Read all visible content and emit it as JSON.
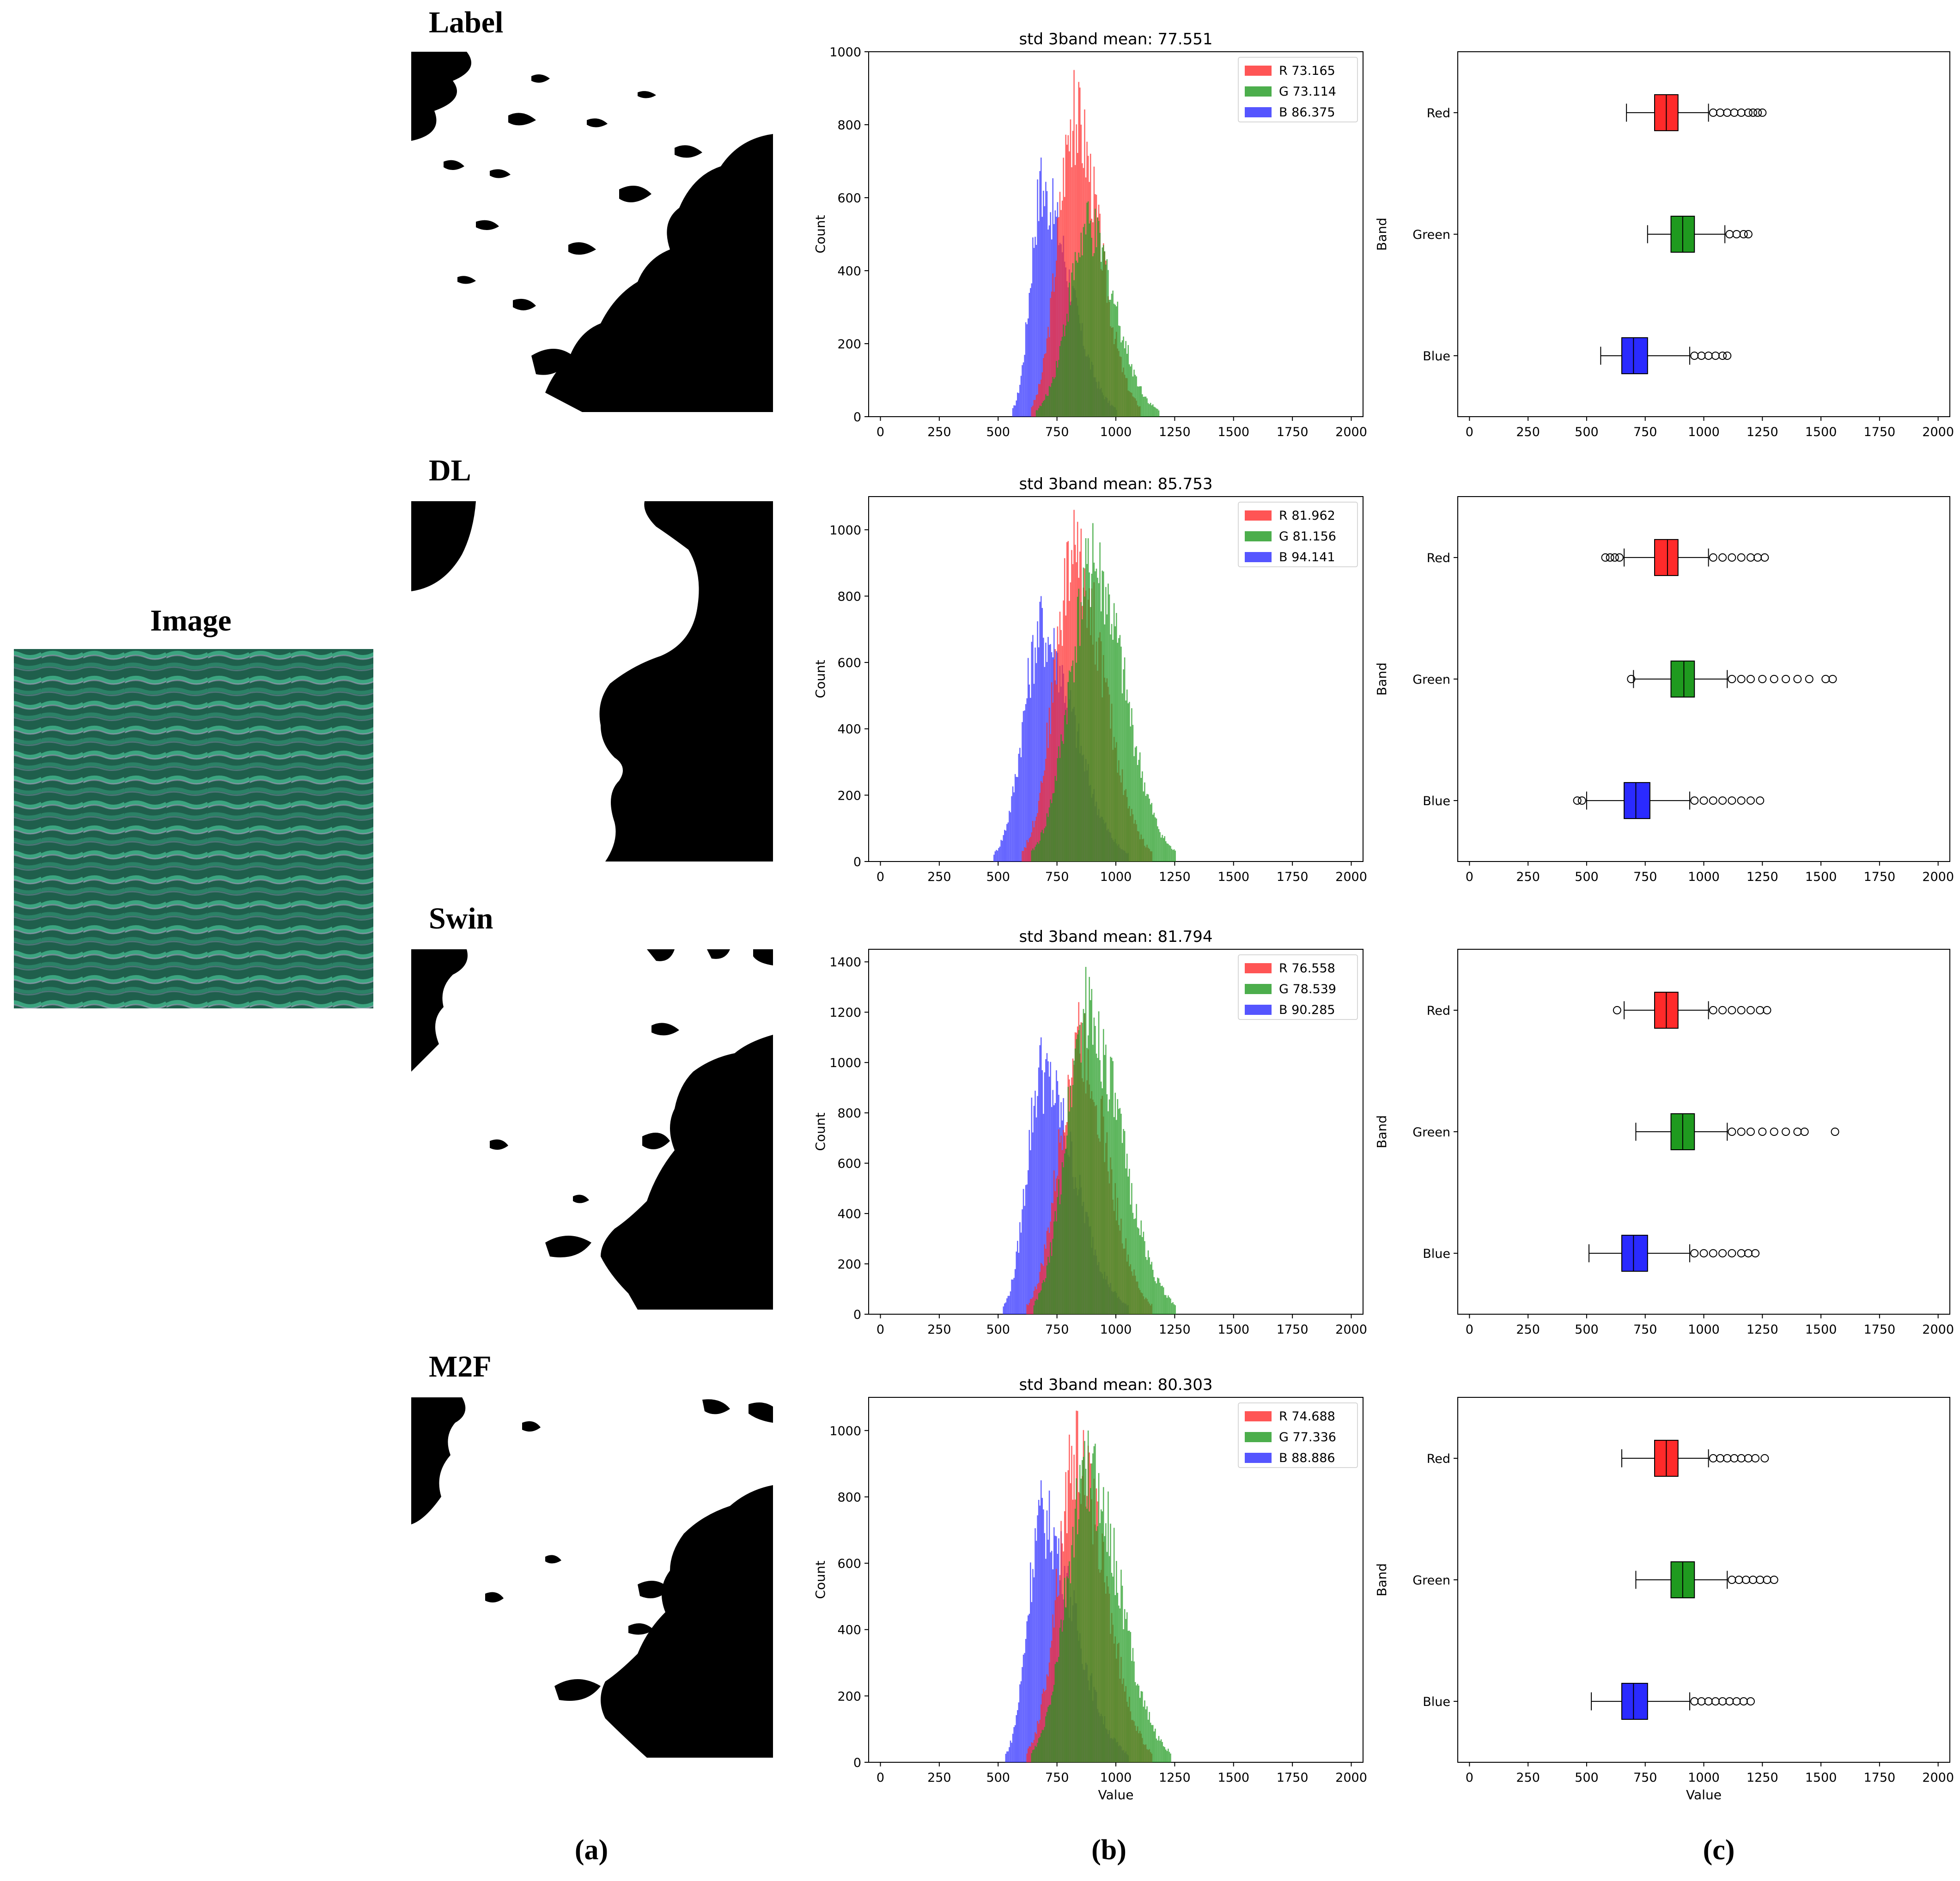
{
  "image_label": "Image",
  "panel_labels": [
    "(a)",
    "(b)",
    "(c)"
  ],
  "rows": [
    "Label",
    "DL",
    "Swin",
    "M2F"
  ],
  "colors": {
    "red": "#ff2a2a",
    "green": "#1f9a1f",
    "blue": "#2a2aff",
    "dark_red": "#b01818",
    "dark_green": "#0d5a0d",
    "dark_blue": "#1c1cb0"
  },
  "chart_data": [
    {
      "type": "histogram",
      "row": "Label",
      "title": "std 3band mean: 77.551",
      "ylabel": "Count",
      "xlabel": "",
      "xlim": [
        -50,
        2050
      ],
      "ylim": [
        0,
        1000
      ],
      "xticks": [
        0,
        250,
        500,
        750,
        1000,
        1250,
        1500,
        1750,
        2000
      ],
      "yticks": [
        0,
        200,
        400,
        600,
        800,
        1000
      ],
      "legend_position": "top-right",
      "series": [
        {
          "name": "R 73.165",
          "band": "red",
          "peak_x": 820,
          "peak_y": 950,
          "min_x": 640,
          "max_x": 1100
        },
        {
          "name": "G 73.114",
          "band": "green",
          "peak_x": 880,
          "peak_y": 590,
          "min_x": 660,
          "max_x": 1180
        },
        {
          "name": "B 86.375",
          "band": "blue",
          "peak_x": 680,
          "peak_y": 710,
          "min_x": 560,
          "max_x": 1000
        }
      ]
    },
    {
      "type": "histogram",
      "row": "DL",
      "title": "std 3band mean: 85.753",
      "ylabel": "Count",
      "xlabel": "",
      "xlim": [
        -50,
        2050
      ],
      "ylim": [
        0,
        1100
      ],
      "xticks": [
        0,
        250,
        500,
        750,
        1000,
        1250,
        1500,
        1750,
        2000
      ],
      "yticks": [
        0,
        200,
        400,
        600,
        800,
        1000
      ],
      "legend_position": "top-right",
      "series": [
        {
          "name": "R 81.962",
          "band": "red",
          "peak_x": 820,
          "peak_y": 1060,
          "min_x": 600,
          "max_x": 1150
        },
        {
          "name": "G 81.156",
          "band": "green",
          "peak_x": 900,
          "peak_y": 1020,
          "min_x": 640,
          "max_x": 1250
        },
        {
          "name": "B 94.141",
          "band": "blue",
          "peak_x": 680,
          "peak_y": 800,
          "min_x": 480,
          "max_x": 1050
        }
      ]
    },
    {
      "type": "histogram",
      "row": "Swin",
      "title": "std 3band mean: 81.794",
      "ylabel": "Count",
      "xlabel": "",
      "xlim": [
        -50,
        2050
      ],
      "ylim": [
        0,
        1450
      ],
      "xticks": [
        0,
        250,
        500,
        750,
        1000,
        1250,
        1500,
        1750,
        2000
      ],
      "yticks": [
        0,
        200,
        400,
        600,
        800,
        1000,
        1200,
        1400
      ],
      "legend_position": "top-right",
      "series": [
        {
          "name": "R 76.558",
          "band": "red",
          "peak_x": 840,
          "peak_y": 1240,
          "min_x": 620,
          "max_x": 1150
        },
        {
          "name": "G 78.539",
          "band": "green",
          "peak_x": 870,
          "peak_y": 1380,
          "min_x": 650,
          "max_x": 1250
        },
        {
          "name": "B 90.285",
          "band": "blue",
          "peak_x": 680,
          "peak_y": 1100,
          "min_x": 520,
          "max_x": 1050
        }
      ]
    },
    {
      "type": "histogram",
      "row": "M2F",
      "title": "std 3band mean: 80.303",
      "ylabel": "Count",
      "xlabel": "Value",
      "xlim": [
        -50,
        2050
      ],
      "ylim": [
        0,
        1100
      ],
      "xticks": [
        0,
        250,
        500,
        750,
        1000,
        1250,
        1500,
        1750,
        2000
      ],
      "yticks": [
        0,
        200,
        400,
        600,
        800,
        1000
      ],
      "legend_position": "top-right",
      "series": [
        {
          "name": "R 74.688",
          "band": "red",
          "peak_x": 830,
          "peak_y": 1060,
          "min_x": 620,
          "max_x": 1150
        },
        {
          "name": "G 77.336",
          "band": "green",
          "peak_x": 880,
          "peak_y": 1000,
          "min_x": 640,
          "max_x": 1230
        },
        {
          "name": "B 88.886",
          "band": "blue",
          "peak_x": 680,
          "peak_y": 850,
          "min_x": 530,
          "max_x": 1050
        }
      ]
    },
    {
      "type": "boxplot",
      "row": "Label",
      "orientation": "horizontal",
      "ylabel": "Band",
      "xlabel": "",
      "xlim": [
        -50,
        2050
      ],
      "xticks": [
        0,
        250,
        500,
        750,
        1000,
        1250,
        1500,
        1750,
        2000
      ],
      "categories": [
        "Red",
        "Green",
        "Blue"
      ],
      "boxes": [
        {
          "band": "red",
          "whisker_low": 670,
          "q1": 790,
          "median": 840,
          "q3": 890,
          "whisker_high": 1020,
          "outliers": [
            1040,
            1070,
            1100,
            1130,
            1160,
            1190,
            1210,
            1230,
            1250
          ]
        },
        {
          "band": "green",
          "whisker_low": 760,
          "q1": 860,
          "median": 910,
          "q3": 960,
          "whisker_high": 1090,
          "outliers": [
            1110,
            1140,
            1170,
            1190
          ]
        },
        {
          "band": "blue",
          "whisker_low": 560,
          "q1": 650,
          "median": 700,
          "q3": 760,
          "whisker_high": 940,
          "outliers": [
            960,
            990,
            1020,
            1050,
            1080,
            1100
          ]
        }
      ]
    },
    {
      "type": "boxplot",
      "row": "DL",
      "orientation": "horizontal",
      "ylabel": "Band",
      "xlabel": "",
      "xlim": [
        -50,
        2050
      ],
      "xticks": [
        0,
        250,
        500,
        750,
        1000,
        1250,
        1500,
        1750,
        2000
      ],
      "categories": [
        "Red",
        "Green",
        "Blue"
      ],
      "boxes": [
        {
          "band": "red",
          "whisker_low": 660,
          "q1": 790,
          "median": 845,
          "q3": 890,
          "whisker_high": 1020,
          "outliers": [
            580,
            600,
            620,
            640,
            1040,
            1080,
            1120,
            1160,
            1200,
            1230,
            1260
          ]
        },
        {
          "band": "green",
          "whisker_low": 700,
          "q1": 860,
          "median": 915,
          "q3": 960,
          "whisker_high": 1100,
          "outliers": [
            690,
            1120,
            1160,
            1200,
            1250,
            1300,
            1350,
            1400,
            1450,
            1520,
            1550
          ]
        },
        {
          "band": "blue",
          "whisker_low": 500,
          "q1": 660,
          "median": 710,
          "q3": 770,
          "whisker_high": 940,
          "outliers": [
            460,
            480,
            960,
            1000,
            1040,
            1080,
            1120,
            1160,
            1200,
            1240
          ]
        }
      ]
    },
    {
      "type": "boxplot",
      "row": "Swin",
      "orientation": "horizontal",
      "ylabel": "Band",
      "xlabel": "",
      "xlim": [
        -50,
        2050
      ],
      "xticks": [
        0,
        250,
        500,
        750,
        1000,
        1250,
        1500,
        1750,
        2000
      ],
      "categories": [
        "Red",
        "Green",
        "Blue"
      ],
      "boxes": [
        {
          "band": "red",
          "whisker_low": 660,
          "q1": 790,
          "median": 840,
          "q3": 890,
          "whisker_high": 1020,
          "outliers": [
            630,
            1040,
            1080,
            1120,
            1160,
            1200,
            1240,
            1270
          ]
        },
        {
          "band": "green",
          "whisker_low": 710,
          "q1": 860,
          "median": 910,
          "q3": 960,
          "whisker_high": 1100,
          "outliers": [
            1120,
            1160,
            1200,
            1250,
            1300,
            1350,
            1400,
            1430,
            1560
          ]
        },
        {
          "band": "blue",
          "whisker_low": 510,
          "q1": 650,
          "median": 700,
          "q3": 760,
          "whisker_high": 940,
          "outliers": [
            960,
            1000,
            1040,
            1080,
            1120,
            1160,
            1190,
            1220
          ]
        }
      ]
    },
    {
      "type": "boxplot",
      "row": "M2F",
      "orientation": "horizontal",
      "ylabel": "Band",
      "xlabel": "Value",
      "xlim": [
        -50,
        2050
      ],
      "xticks": [
        0,
        250,
        500,
        750,
        1000,
        1250,
        1500,
        1750,
        2000
      ],
      "categories": [
        "Red",
        "Green",
        "Blue"
      ],
      "boxes": [
        {
          "band": "red",
          "whisker_low": 650,
          "q1": 790,
          "median": 840,
          "q3": 890,
          "whisker_high": 1020,
          "outliers": [
            1040,
            1070,
            1100,
            1130,
            1160,
            1190,
            1220,
            1260
          ]
        },
        {
          "band": "green",
          "whisker_low": 710,
          "q1": 860,
          "median": 910,
          "q3": 960,
          "whisker_high": 1100,
          "outliers": [
            1120,
            1150,
            1180,
            1210,
            1240,
            1270,
            1300
          ]
        },
        {
          "band": "blue",
          "whisker_low": 520,
          "q1": 650,
          "median": 700,
          "q3": 760,
          "whisker_high": 940,
          "outliers": [
            960,
            990,
            1020,
            1050,
            1080,
            1110,
            1140,
            1170,
            1200
          ]
        }
      ]
    }
  ]
}
